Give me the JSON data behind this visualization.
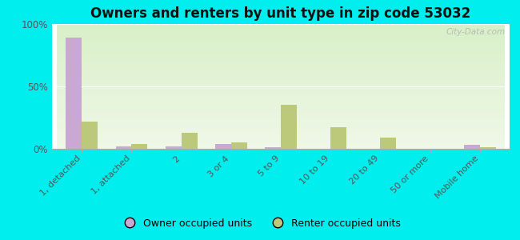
{
  "title": "Owners and renters by unit type in zip code 53032",
  "categories": [
    "1, detached",
    "1, attached",
    "2",
    "3 or 4",
    "5 to 9",
    "10 to 19",
    "20 to 49",
    "50 or more",
    "Mobile home"
  ],
  "owner_values": [
    89,
    2,
    2,
    4,
    1,
    0,
    0,
    0,
    3
  ],
  "renter_values": [
    22,
    4,
    13,
    5,
    35,
    17,
    9,
    0,
    1
  ],
  "owner_color": "#c9a8d4",
  "renter_color": "#bcc87a",
  "background_color": "#00eeee",
  "plot_bg_top": "#d8f0c8",
  "plot_bg_bottom": "#f0f8e8",
  "ylim": [
    0,
    100
  ],
  "yticks": [
    0,
    50,
    100
  ],
  "ytick_labels": [
    "0%",
    "50%",
    "100%"
  ],
  "bar_width": 0.32,
  "legend_owner": "Owner occupied units",
  "legend_renter": "Renter occupied units",
  "watermark": "City-Data.com"
}
